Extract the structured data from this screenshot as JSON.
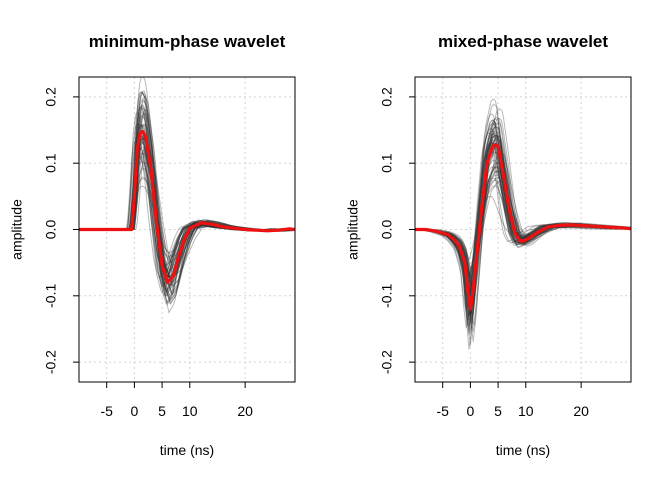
{
  "chart_data": [
    {
      "type": "line",
      "title": "minimum-phase wavelet",
      "xlabel": "time (ns)",
      "ylabel": "amplitude",
      "xlim": [
        -10,
        29
      ],
      "ylim": [
        -0.23,
        0.23
      ],
      "x_ticks": [
        -5,
        0,
        5,
        10,
        20
      ],
      "x_tick_labels": [
        "-5",
        "0",
        "5",
        "10",
        "20"
      ],
      "y_ticks": [
        -0.2,
        -0.1,
        0.0,
        0.1,
        0.2
      ],
      "y_tick_labels": [
        "-0.2",
        "-0.1",
        "0.0",
        "0.1",
        "0.2"
      ],
      "grid": true,
      "ensemble": {
        "count": 60,
        "color": "#333333",
        "opacity": 0.35
      },
      "mean_series": {
        "color": "#ee1111",
        "x": [
          -10,
          -0.5,
          0,
          0.5,
          1,
          1.5,
          2,
          3,
          4,
          5,
          6,
          7,
          8,
          9,
          10,
          12,
          14,
          16,
          18,
          20,
          22,
          24,
          26,
          28,
          29
        ],
        "y": [
          0,
          0,
          0.05,
          0.12,
          0.145,
          0.148,
          0.14,
          0.09,
          0.01,
          -0.055,
          -0.08,
          -0.07,
          -0.04,
          -0.015,
          0.002,
          0.01,
          0.008,
          0.004,
          0.002,
          0.0,
          -0.001,
          -0.002,
          -0.001,
          0.001,
          0.0
        ]
      }
    },
    {
      "type": "line",
      "title": "mixed-phase wavelet",
      "xlabel": "time (ns)",
      "ylabel": "amplitude",
      "xlim": [
        -10,
        29
      ],
      "ylim": [
        -0.23,
        0.23
      ],
      "x_ticks": [
        -5,
        0,
        5,
        10,
        20
      ],
      "x_tick_labels": [
        "-5",
        "0",
        "5",
        "10",
        "20"
      ],
      "y_ticks": [
        -0.2,
        -0.1,
        0.0,
        0.1,
        0.2
      ],
      "y_tick_labels": [
        "-0.2",
        "-0.1",
        "0.0",
        "0.1",
        "0.2"
      ],
      "grid": true,
      "ensemble": {
        "count": 60,
        "color": "#333333",
        "opacity": 0.35
      },
      "mean_series": {
        "color": "#ee1111",
        "x": [
          -10,
          -8,
          -6,
          -4,
          -3,
          -2,
          -1,
          -0.5,
          0,
          0.5,
          1,
          2,
          3,
          4,
          4.5,
          5,
          6,
          7,
          8,
          9,
          10,
          12,
          14,
          16,
          18,
          20,
          22,
          24,
          26,
          28,
          29
        ],
        "y": [
          0.0,
          0.0,
          -0.003,
          -0.008,
          -0.015,
          -0.025,
          -0.05,
          -0.09,
          -0.12,
          -0.09,
          -0.05,
          0.03,
          0.1,
          0.125,
          0.128,
          0.125,
          0.08,
          0.03,
          -0.005,
          -0.018,
          -0.016,
          -0.005,
          0.004,
          0.006,
          0.007,
          0.006,
          0.005,
          0.004,
          0.003,
          0.002,
          0.001
        ]
      }
    }
  ]
}
